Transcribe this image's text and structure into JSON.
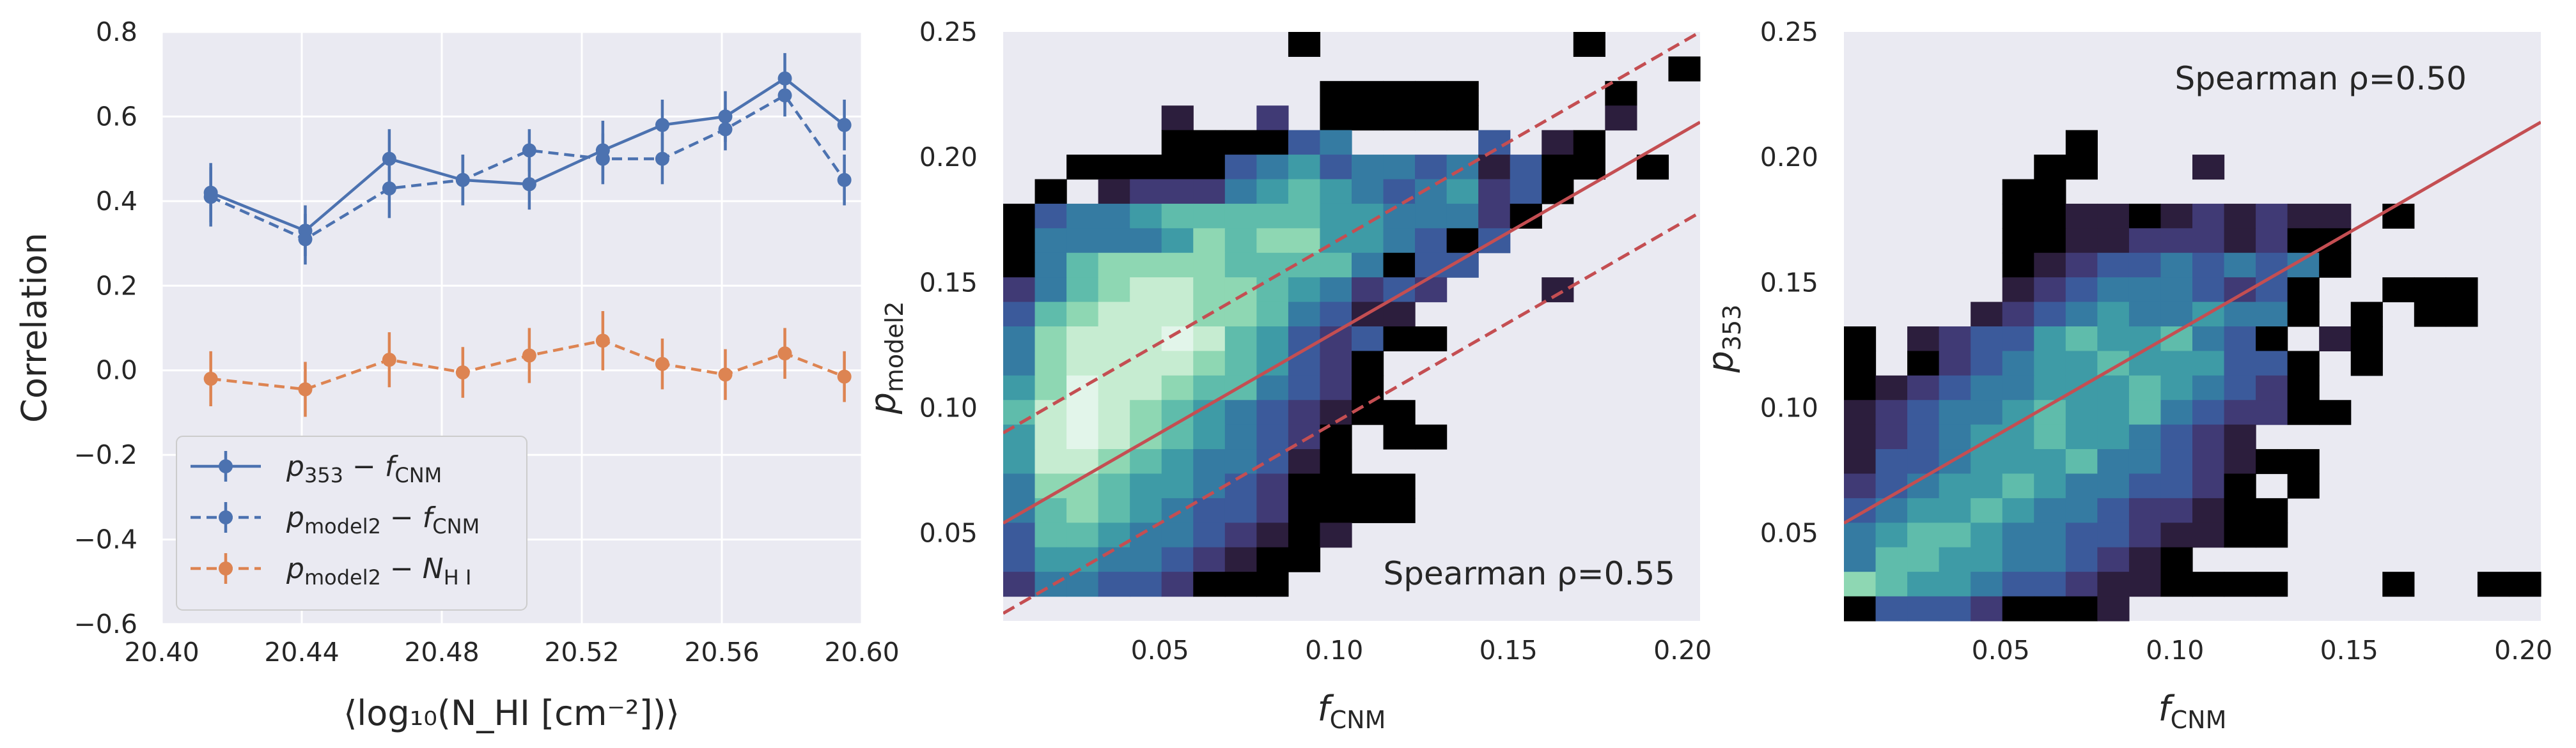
{
  "chart_data": [
    {
      "type": "line",
      "xlabel": "⟨log₁₀(N_HI [cm⁻²])⟩",
      "ylabel": "Correlation",
      "xlim": [
        20.4,
        20.6
      ],
      "ylim": [
        -0.6,
        0.8
      ],
      "xticks": [
        "20.40",
        "20.44",
        "20.48",
        "20.52",
        "20.56",
        "20.60"
      ],
      "yticks": [
        "−0.6",
        "−0.4",
        "−0.2",
        "0.0",
        "0.2",
        "0.4",
        "0.6",
        "0.8"
      ],
      "grid": true,
      "legend_position": "lower-left",
      "x": [
        20.414,
        20.441,
        20.465,
        20.486,
        20.505,
        20.526,
        20.543,
        20.561,
        20.578,
        20.595
      ],
      "series": [
        {
          "name": "p353 − fCNM",
          "legend_main": "p",
          "legend_sub": "353",
          "legend_mid": " − ",
          "legend_main2": "f",
          "legend_sub2": "CNM",
          "color": "#4c72b0",
          "dash": "solid",
          "values": [
            0.42,
            0.33,
            0.5,
            0.45,
            0.44,
            0.52,
            0.58,
            0.6,
            0.69,
            0.58
          ],
          "errors": [
            0.07,
            0.06,
            0.07,
            0.06,
            0.06,
            0.07,
            0.06,
            0.06,
            0.06,
            0.06
          ]
        },
        {
          "name": "pmodel2 − fCNM",
          "legend_main": "p",
          "legend_sub": "model2",
          "legend_mid": " − ",
          "legend_main2": "f",
          "legend_sub2": "CNM",
          "color": "#4c72b0",
          "dash": "dashed",
          "values": [
            0.41,
            0.31,
            0.43,
            0.45,
            0.52,
            0.5,
            0.5,
            0.57,
            0.65,
            0.45
          ],
          "errors": [
            0.07,
            0.06,
            0.07,
            0.06,
            0.05,
            0.06,
            0.06,
            0.05,
            0.05,
            0.06
          ]
        },
        {
          "name": "pmodel2 − NHI",
          "legend_main": "p",
          "legend_sub": "model2",
          "legend_mid": " − ",
          "legend_main2": "N",
          "legend_sub2": "H I",
          "color": "#dd8452",
          "dash": "dashed",
          "values": [
            -0.02,
            -0.045,
            0.025,
            -0.005,
            0.035,
            0.07,
            0.015,
            -0.01,
            0.04,
            -0.015
          ],
          "errors": [
            0.065,
            0.065,
            0.065,
            0.06,
            0.065,
            0.07,
            0.06,
            0.06,
            0.06,
            0.06
          ]
        }
      ]
    },
    {
      "type": "heatmap",
      "xlabel_main": "f",
      "xlabel_sub": "CNM",
      "ylabel_main": "p",
      "ylabel_sub": "model2",
      "xlim": [
        0.005,
        0.205
      ],
      "ylim": [
        0.015,
        0.25
      ],
      "xticks": [
        "0.05",
        "0.10",
        "0.15",
        "0.20"
      ],
      "yticks": [
        "0.05",
        "0.10",
        "0.15",
        "0.20",
        "0.25"
      ],
      "annotation": "Spearman ρ=0.55",
      "annotation_position": "bottom-right",
      "fit_line": {
        "slope": 0.8,
        "intercept": 0.05,
        "color": "#c44e52"
      },
      "fit_band": {
        "offset": 0.036,
        "style": "dashed"
      },
      "nx": 22,
      "ny": 24,
      "colormap": [
        "#000000",
        "#2c1e3d",
        "#403a75",
        "#3b5a9b",
        "#357ba2",
        "#3e9ba6",
        "#5fbcab",
        "#8ed7b3",
        "#c6ecd1",
        "#e2f5ea"
      ],
      "rows": [
        ". . . . . . . . . 0 . . . . . . . . 0 . . .",
        ". . . . . . . . . . . . . . . . . . . . . 0",
        ". . . . . . . . . . 0 0 0 0 0 . . . . 0 . .",
        ". . . . . 1 . . 2 . 0 0 0 0 0 . . . . 1 . .",
        ". . . . . 0 0 0 0 3 4 . . . . 3 . 1 0 . . .",
        ". . 0 0 0 0 0 3 4 5 3 4 4 3 4 1 3 0 0 . 0 .",
        ". 0 . 1 2 2 2 4 5 6 5 4 3 4 5 2 3 0 . . . .",
        "0 3 4 4 5 6 6 6 6 6 5 5 4 4 4 2 0 . . . . .",
        "0 4 4 4 4 5 7 6 7 7 5 5 4 3 0 3 . . . . . .",
        "0 4 6 7 7 7 7 6 6 6 6 4 0 3 3 . . . . . . .",
        "2 4 6 7 8 8 7 7 6 5 4 2 3 2 . . . 1 . . . .",
        "3 6 7 8 8 8 7 7 6 4 3 1 1 . . . . . . . . .",
        "4 7 8 8 8 9 8 6 5 3 2 3 0 0 . . . . . . . .",
        "4 7 8 8 8 8 7 6 5 3 2 0 . . . . . . . . . .",
        "5 7 9 8 8 7 6 6 4 3 2 0 . . . . . . . . . .",
        "6 8 9 8 7 6 5 4 3 2 1 0 0 . . . . . . . . .",
        "5 8 9 8 7 6 5 4 3 2 0 . 0 0 . . . . . . . .",
        "5 8 8 7 6 5 4 4 3 1 0 . . . . . . . . . . .",
        "4 7 7 6 5 5 4 3 2 0 0 0 0 . . . . . . . . .",
        "4 6 7 6 5 4 3 3 2 0 0 0 0 . . . . . . . . .",
        "3 6 6 5 4 4 3 2 1 0 1 . . . . . . . . . . .",
        "3 5 5 4 4 3 2 1 0 0 . . . . . . . . . . . .",
        "2 4 4 3 3 2 0 0 0 . . . . . . . . . . . . .",
        ". . . . . . . . . . . . . . . . . . . . . ."
      ]
    },
    {
      "type": "heatmap",
      "xlabel_main": "f",
      "xlabel_sub": "CNM",
      "ylabel_main": "p",
      "ylabel_sub": "353",
      "xlim": [
        0.005,
        0.205
      ],
      "ylim": [
        0.015,
        0.25
      ],
      "xticks": [
        "0.05",
        "0.10",
        "0.15",
        "0.20"
      ],
      "yticks": [
        "0.05",
        "0.10",
        "0.15",
        "0.20",
        "0.25"
      ],
      "annotation": "Spearman ρ=0.50",
      "annotation_position": "top-right",
      "fit_line": {
        "slope": 0.8,
        "intercept": 0.05,
        "color": "#c44e52"
      },
      "nx": 22,
      "ny": 24,
      "colormap": [
        "#000000",
        "#2c1e3d",
        "#403a75",
        "#3b5a9b",
        "#357ba2",
        "#3e9ba6",
        "#5fbcab",
        "#8ed7b3",
        "#c6ecd1",
        "#e2f5ea"
      ],
      "rows": [
        ". . . . . . . . . . . . . . . . . . . . . .",
        ". . . . . . . . . . . . . . . . . . . . . .",
        ". . . . . . . . . . . . . . . . . . . . . .",
        ". . . . . . . . . . . . . . . . . . . . . .",
        ". . . . . . . 0 . . . . . . . . . . . . . .",
        ". . . . . . 0 0 . . . 1 . . . . . . . . . .",
        ". . . . . 0 0 . . . . . . . . . . . . . . .",
        ". . . . . 0 0 1 1 0 1 2 1 2 1 1 . 0 . . . .",
        ". . . . . 0 0 1 1 2 2 2 1 2 0 0 . . . . . .",
        ". . . . . 0 1 2 3 3 4 3 4 3 4 0 . . . . . .",
        ". . . . . 1 2 3 4 4 4 3 2 3 0 . . 0 0 0 . .",
        ". . . . 1 2 3 4 5 4 4 5 4 4 0 . 0 . 0 0 . .",
        "0 . 1 2 3 3 5 6 5 5 6 4 3 0 . 1 0 . . . . .",
        "0 . 0 2 3 4 5 5 6 5 5 5 3 3 0 . 0 . . . . .",
        "0 1 2 3 4 4 5 5 5 6 5 4 3 2 0 . . . . . . .",
        "1 2 3 4 4 5 6 5 5 6 4 3 2 2 0 0 . . . . . .",
        "1 2 3 4 5 5 6 5 5 4 3 2 1 . . . . . . . . .",
        "1 3 3 4 5 5 5 6 4 4 3 2 1 0 0 . . . . . . .",
        "2 3 4 5 5 6 5 4 4 3 3 2 0 . 0 . . . . . . .",
        "3 4 5 5 6 5 4 4 3 2 2 1 0 0 . . . . . . . .",
        "4 5 6 6 5 4 4 3 3 2 1 1 0 0 . . . . . . . .",
        "4 6 6 5 5 4 4 3 2 1 0 . . . . . . . . . . .",
        "7 6 5 5 4 3 3 2 1 1 0 0 0 0 . . . 0 . . 0 0",
        "0 3 3 3 2 0 0 0 1 . . . . . . . . . . . . ."
      ]
    }
  ]
}
